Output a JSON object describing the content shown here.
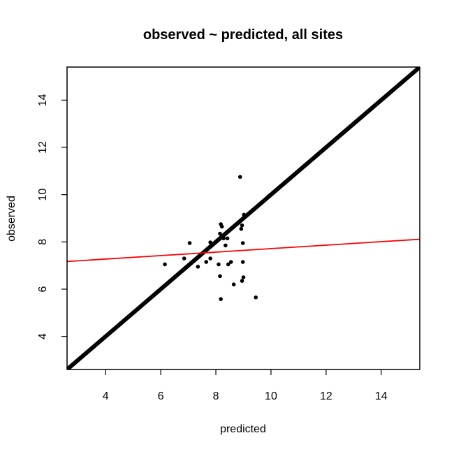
{
  "chart_data": {
    "type": "scatter",
    "title": "observed ~ predicted, all sites",
    "xlabel": "predicted",
    "ylabel": "observed",
    "xlim": [
      2.6,
      15.4
    ],
    "ylim": [
      2.6,
      15.4
    ],
    "x_ticks": [
      4,
      6,
      8,
      10,
      12,
      14
    ],
    "y_ticks": [
      4,
      6,
      8,
      10,
      12,
      14
    ],
    "grid": false,
    "legend": "none",
    "points": [
      {
        "x": 6.15,
        "y": 7.05
      },
      {
        "x": 6.85,
        "y": 7.3
      },
      {
        "x": 7.05,
        "y": 7.95
      },
      {
        "x": 7.35,
        "y": 6.95
      },
      {
        "x": 7.65,
        "y": 7.15
      },
      {
        "x": 7.8,
        "y": 7.3
      },
      {
        "x": 7.8,
        "y": 7.98
      },
      {
        "x": 8.1,
        "y": 7.05
      },
      {
        "x": 8.15,
        "y": 8.35
      },
      {
        "x": 8.15,
        "y": 6.55
      },
      {
        "x": 8.18,
        "y": 8.75
      },
      {
        "x": 8.22,
        "y": 8.65
      },
      {
        "x": 8.18,
        "y": 5.58
      },
      {
        "x": 8.28,
        "y": 8.15
      },
      {
        "x": 8.35,
        "y": 7.85
      },
      {
        "x": 8.42,
        "y": 8.15
      },
      {
        "x": 8.45,
        "y": 7.05
      },
      {
        "x": 8.55,
        "y": 7.15
      },
      {
        "x": 8.65,
        "y": 6.2
      },
      {
        "x": 8.88,
        "y": 10.75
      },
      {
        "x": 8.92,
        "y": 8.55
      },
      {
        "x": 8.95,
        "y": 8.7
      },
      {
        "x": 8.98,
        "y": 7.95
      },
      {
        "x": 8.98,
        "y": 7.15
      },
      {
        "x": 8.95,
        "y": 6.35
      },
      {
        "x": 9.0,
        "y": 6.5
      },
      {
        "x": 9.02,
        "y": 9.15
      },
      {
        "x": 9.45,
        "y": 5.65
      }
    ],
    "lines": [
      {
        "kind": "identity",
        "intercept": 0,
        "slope": 1,
        "color": "#000000",
        "width": "thick"
      },
      {
        "kind": "fit",
        "intercept": 6.98,
        "slope": 0.0735,
        "color": "#ff0000",
        "width": "thin"
      }
    ],
    "colors": {
      "points": "#000000",
      "identity_line": "#000000",
      "fit_line": "#ff0000"
    }
  }
}
